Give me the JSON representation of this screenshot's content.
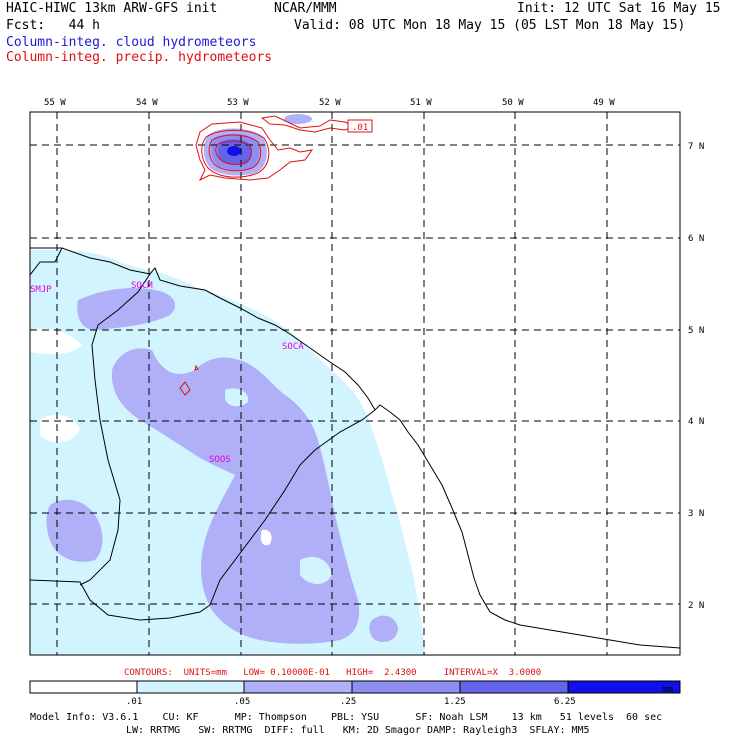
{
  "header": {
    "title_left": "HAIC-HIWC 13km ARW-GFS init",
    "org": "NCAR/MMM",
    "init": "Init: 12 UTC Sat 16 May 15",
    "fcst": "Fcst:   44 h",
    "valid": "Valid: 08 UTC Mon 18 May 15 (05 LST Mon 18 May 15)",
    "field_cloud": "Column-integ. cloud hydrometeors",
    "field_precip": "Column-integ. precip. hydrometeors"
  },
  "map": {
    "lon_labels": [
      "55 W",
      "54 W",
      "53 W",
      "52 W",
      "51 W",
      "50 W",
      "49 W"
    ],
    "lat_labels": [
      "7 N",
      "6 N",
      "5 N",
      "4 N",
      "3 N",
      "2 N"
    ],
    "stations": [
      "SMJP",
      "SOCM",
      "SOCA",
      "SOOS"
    ],
    "contour_label": ".01"
  },
  "colorbar": {
    "ticks": [
      ".01",
      ".05",
      ".25",
      "1.25",
      "6.25"
    ],
    "unit": "mm",
    "colors": [
      "#ffffff",
      "#d2f4ff",
      "#b0b0f8",
      "#8e8ef2",
      "#6464ea",
      "#3b3be6",
      "#1010e8"
    ]
  },
  "contours_line": "CONTOURS:  UNITS=mm   LOW= 0.10000E-01   HIGH=  2.4300     INTERVAL=X  3.0000",
  "model_info": {
    "line1": "Model Info: V3.6.1    CU: KF      MP: Thompson    PBL: YSU      SF: Noah LSM    13 km   51 levels  60 sec",
    "line2": "LW: RRTMG   SW: RRTMG  DIFF: full   KM: 2D Smagor DAMP: Rayleigh3  SFLAY: MM5"
  }
}
